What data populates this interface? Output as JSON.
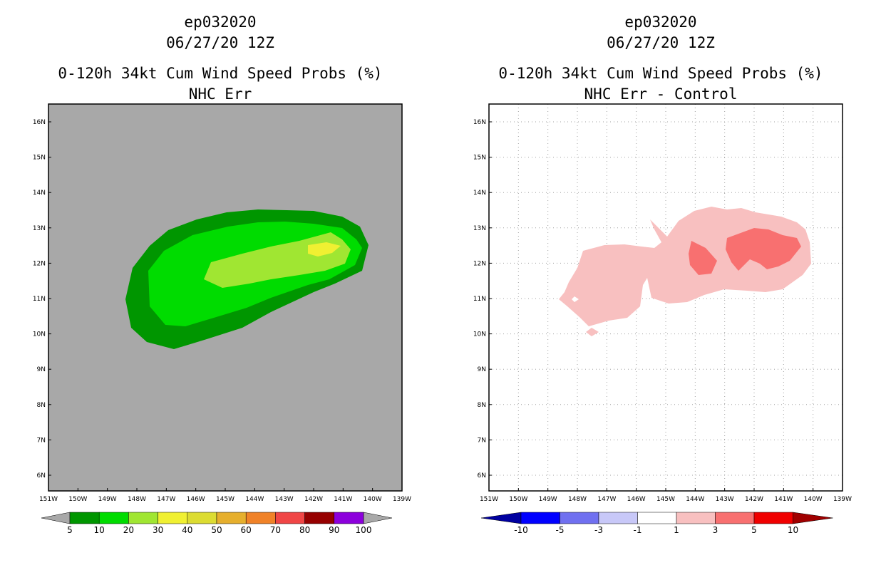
{
  "left": {
    "storm_id": "ep032020",
    "date": "06/27/20 12Z",
    "title": "0-120h 34kt Cum Wind Speed Probs (%)",
    "subtitle": "NHC Err",
    "colorbar": {
      "labels": [
        "5",
        "10",
        "20",
        "30",
        "40",
        "50",
        "60",
        "70",
        "80",
        "90",
        "100"
      ],
      "colors": [
        "#009600",
        "#00dc00",
        "#a0e632",
        "#f0f032",
        "#dcdc32",
        "#e6af2d",
        "#f08228",
        "#f04646",
        "#960000",
        "#8c00dc"
      ],
      "extend_color": "#a8a8a8"
    }
  },
  "right": {
    "storm_id": "ep032020",
    "date": "06/27/20 12Z",
    "title": "0-120h 34kt Cum Wind Speed Probs (%)",
    "subtitle": "NHC Err - Control",
    "colorbar": {
      "labels": [
        "-10",
        "-5",
        "-3",
        "-1",
        "1",
        "3",
        "5",
        "10"
      ],
      "colors": [
        "#0000a0",
        "#0000ff",
        "#7070f0",
        "#c8c8f8",
        "#ffffff",
        "#f8c0c0",
        "#f87070",
        "#f00000",
        "#a00000"
      ]
    }
  },
  "map": {
    "lon_labels": [
      "151W",
      "150W",
      "149W",
      "148W",
      "147W",
      "146W",
      "145W",
      "144W",
      "143W",
      "142W",
      "141W",
      "140W",
      "139W"
    ],
    "lat_labels": [
      "6N",
      "7N",
      "8N",
      "9N",
      "10N",
      "11N",
      "12N",
      "13N",
      "14N",
      "15N",
      "16N"
    ]
  },
  "colors": {
    "land_gray": "#a8a8a8",
    "prob_dark_green": "#009600",
    "prob_green": "#00dc00",
    "prob_light_green": "#a0e632",
    "prob_yellow": "#f0f032",
    "diff_pink": "#f8c0c0",
    "diff_red": "#f87070"
  }
}
